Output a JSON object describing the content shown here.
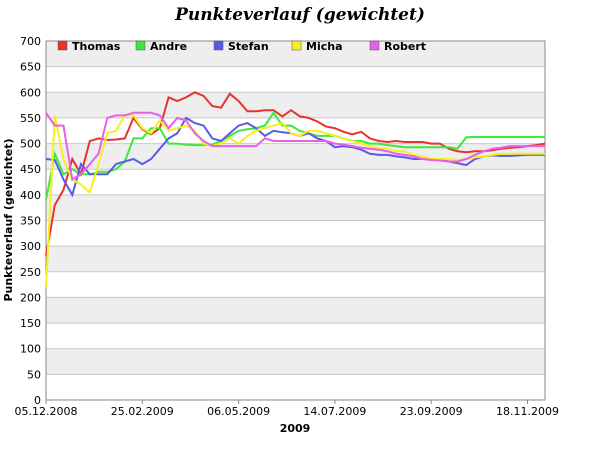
{
  "chart_data": {
    "type": "line",
    "title": "Punkteverlauf (gewichtet)",
    "x_label": "2009",
    "y_label": "Punkteverlauf (gewichtet)",
    "categories": [
      "05.12.2008",
      null,
      null,
      null,
      null,
      null,
      null,
      null,
      null,
      null,
      null,
      "25.02.2009",
      null,
      null,
      null,
      null,
      null,
      null,
      null,
      null,
      null,
      null,
      "06.05.2009",
      null,
      null,
      null,
      null,
      null,
      null,
      null,
      null,
      null,
      null,
      "14.07.2009",
      null,
      null,
      null,
      null,
      null,
      null,
      null,
      null,
      null,
      null,
      "23.09.2009",
      null,
      null,
      null,
      null,
      null,
      null,
      null,
      null,
      null,
      null,
      "18.11.2009",
      null,
      null
    ],
    "series": [
      {
        "name": "Thomas",
        "color": "#e8322d",
        "values": [
          280,
          380,
          410,
          470,
          440,
          505,
          510,
          507,
          508,
          510,
          550,
          528,
          518,
          530,
          590,
          583,
          590,
          600,
          593,
          573,
          570,
          597,
          583,
          563,
          563,
          565,
          565,
          553,
          565,
          553,
          550,
          543,
          533,
          530,
          523,
          518,
          523,
          510,
          505,
          503,
          505,
          503,
          503,
          503,
          500,
          500,
          490,
          485,
          483,
          485,
          485,
          487,
          490,
          492,
          493,
          495,
          497,
          500
        ]
      },
      {
        "name": "Andre",
        "color": "#3ee83a",
        "values": [
          390,
          480,
          440,
          450,
          440,
          440,
          445,
          445,
          450,
          465,
          510,
          510,
          530,
          530,
          500,
          500,
          498,
          497,
          497,
          498,
          505,
          515,
          525,
          528,
          530,
          535,
          560,
          535,
          535,
          525,
          520,
          515,
          515,
          515,
          510,
          505,
          505,
          500,
          500,
          497,
          495,
          493,
          493,
          493,
          493,
          493,
          493,
          490,
          512,
          513,
          513,
          513,
          513,
          513,
          513,
          513,
          513,
          513
        ]
      },
      {
        "name": "Stefan",
        "color": "#5a5ae8",
        "values": [
          470,
          468,
          430,
          400,
          460,
          440,
          440,
          440,
          460,
          465,
          470,
          460,
          470,
          490,
          510,
          520,
          550,
          540,
          535,
          510,
          505,
          520,
          535,
          540,
          530,
          515,
          525,
          522,
          520,
          515,
          520,
          510,
          505,
          493,
          495,
          493,
          488,
          480,
          478,
          478,
          475,
          473,
          470,
          470,
          470,
          468,
          465,
          462,
          458,
          470,
          475,
          477,
          476,
          476,
          477,
          478,
          478,
          478
        ]
      },
      {
        "name": "Micha",
        "color": "#f4f020",
        "values": [
          220,
          555,
          470,
          430,
          420,
          405,
          460,
          520,
          525,
          555,
          555,
          530,
          520,
          545,
          525,
          530,
          535,
          525,
          500,
          495,
          500,
          510,
          500,
          515,
          525,
          530,
          535,
          540,
          520,
          515,
          525,
          525,
          520,
          515,
          510,
          505,
          500,
          495,
          490,
          490,
          485,
          485,
          478,
          475,
          470,
          470,
          470,
          468,
          470,
          473,
          475,
          478,
          480,
          480,
          480,
          480,
          480,
          480
        ]
      },
      {
        "name": "Robert",
        "color": "#e860e8",
        "values": [
          560,
          535,
          535,
          430,
          440,
          460,
          480,
          550,
          555,
          555,
          560,
          560,
          560,
          555,
          530,
          550,
          545,
          520,
          505,
          495,
          495,
          495,
          495,
          495,
          495,
          510,
          505,
          505,
          505,
          505,
          505,
          505,
          505,
          500,
          498,
          495,
          492,
          490,
          488,
          485,
          480,
          478,
          475,
          470,
          468,
          467,
          465,
          465,
          470,
          478,
          485,
          490,
          492,
          495,
          495,
          495,
          495,
          495
        ]
      }
    ],
    "ylim": [
      0,
      700
    ],
    "yticks": [
      0,
      50,
      100,
      150,
      200,
      250,
      300,
      350,
      400,
      450,
      500,
      550,
      600,
      650,
      700
    ],
    "grid": true,
    "legend": "top"
  }
}
